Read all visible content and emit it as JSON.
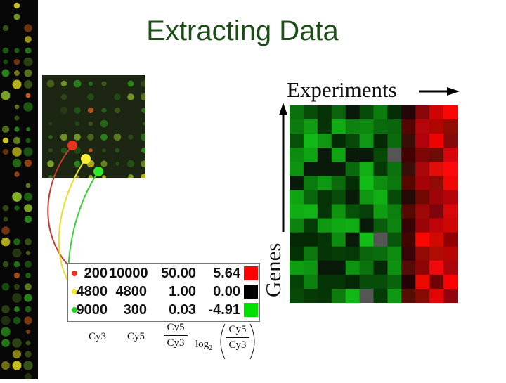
{
  "title": "Extracting Data",
  "heatmap": {
    "experiments_label": "Experiments",
    "genes_label": "Genes"
  },
  "table": {
    "rows": [
      {
        "cy3": "200",
        "cy5": "10000",
        "ratio": "50.00",
        "log": "5.64",
        "color": "#ff0000"
      },
      {
        "cy3": "4800",
        "cy5": "4800",
        "ratio": "1.00",
        "log": "0.00",
        "color": "#000000"
      },
      {
        "cy3": "9000",
        "cy5": "300",
        "ratio": "0.03",
        "log": "-4.91",
        "color": "#00e000"
      }
    ],
    "footer": {
      "cy3": "Cy3",
      "cy5": "Cy5",
      "ratio_num": "Cy5",
      "ratio_den": "Cy3",
      "log_prefix": "log",
      "log_sub": "2",
      "log_num": "Cy5",
      "log_den": "Cy3"
    }
  },
  "colors": {
    "title": "#1d4d17",
    "red": "#e0241b",
    "yellow": "#f2e620",
    "green": "#1fd21f"
  }
}
